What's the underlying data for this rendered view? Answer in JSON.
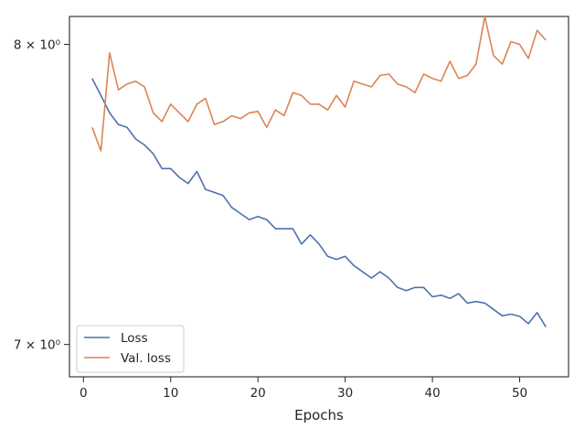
{
  "chart_data": {
    "type": "line",
    "title": "",
    "xlabel": "Epochs",
    "ylabel": "",
    "yscale": "log",
    "xlim": [
      -1.6,
      55.6
    ],
    "ylim": [
      6.9,
      8.1
    ],
    "grid": false,
    "legend_position": "lower-left",
    "x_ticks": [
      {
        "value": 0,
        "label": "0"
      },
      {
        "value": 10,
        "label": "10"
      },
      {
        "value": 20,
        "label": "20"
      },
      {
        "value": 30,
        "label": "30"
      },
      {
        "value": 40,
        "label": "40"
      },
      {
        "value": 50,
        "label": "50"
      }
    ],
    "y_ticks": [
      {
        "value": 7.0,
        "label": "7 × 10⁰"
      },
      {
        "value": 8.0,
        "label": "8 × 10⁰"
      }
    ],
    "x": [
      1,
      2,
      3,
      4,
      5,
      6,
      7,
      8,
      9,
      10,
      11,
      12,
      13,
      14,
      15,
      16,
      17,
      18,
      19,
      20,
      21,
      22,
      23,
      24,
      25,
      26,
      27,
      28,
      29,
      30,
      31,
      32,
      33,
      34,
      35,
      36,
      37,
      38,
      39,
      40,
      41,
      42,
      43,
      44,
      45,
      46,
      47,
      48,
      49,
      50,
      51,
      52,
      53
    ],
    "series": [
      {
        "name": "Loss",
        "color": "#4c72b0",
        "values": [
          7.88,
          7.82,
          7.76,
          7.72,
          7.71,
          7.67,
          7.65,
          7.62,
          7.57,
          7.57,
          7.54,
          7.52,
          7.56,
          7.5,
          7.49,
          7.48,
          7.44,
          7.42,
          7.4,
          7.41,
          7.4,
          7.37,
          7.37,
          7.37,
          7.32,
          7.35,
          7.32,
          7.28,
          7.27,
          7.28,
          7.25,
          7.23,
          7.21,
          7.23,
          7.21,
          7.18,
          7.17,
          7.18,
          7.18,
          7.15,
          7.155,
          7.145,
          7.16,
          7.13,
          7.135,
          7.13,
          7.11,
          7.09,
          7.095,
          7.088,
          7.065,
          7.1,
          7.055
        ]
      },
      {
        "name": "Val. loss",
        "color": "#dd8452",
        "values": [
          7.71,
          7.63,
          7.97,
          7.84,
          7.86,
          7.87,
          7.85,
          7.76,
          7.73,
          7.79,
          7.76,
          7.73,
          7.79,
          7.81,
          7.72,
          7.73,
          7.75,
          7.74,
          7.76,
          7.765,
          7.71,
          7.77,
          7.75,
          7.83,
          7.82,
          7.79,
          7.79,
          7.77,
          7.82,
          7.78,
          7.87,
          7.86,
          7.85,
          7.89,
          7.895,
          7.86,
          7.85,
          7.83,
          7.895,
          7.88,
          7.87,
          7.94,
          7.88,
          7.89,
          7.93,
          8.1,
          7.96,
          7.93,
          8.01,
          8.0,
          7.95,
          8.05,
          8.015
        ]
      }
    ]
  }
}
